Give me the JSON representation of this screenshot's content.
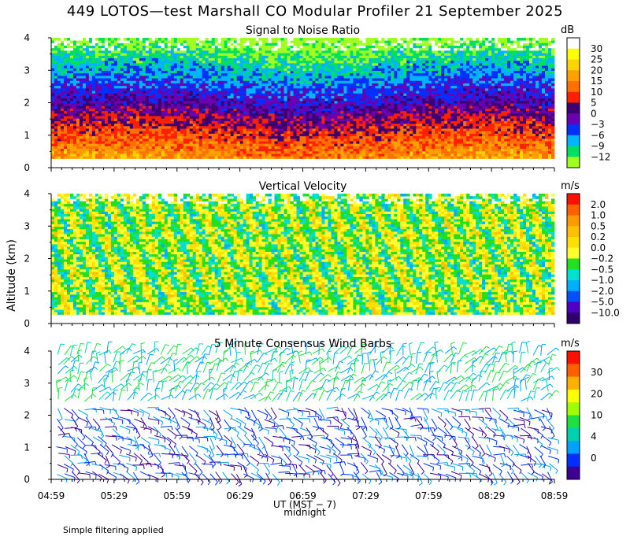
{
  "figure": {
    "title": "449 LOTOS—test Marshall CO Modular Profiler 21 September 2025",
    "ylabel": "Altitude (km)",
    "xlabel": "UT (MST − 7)",
    "midnight_label": "midnight",
    "note": "Simple filtering applied"
  },
  "chart_data": [
    {
      "type": "heatmap",
      "title": "Signal to Noise Ratio",
      "ylim": [
        0,
        4
      ],
      "yticks": [
        "0",
        "1",
        "2",
        "3",
        "4"
      ],
      "colorbar": {
        "unit": "dB",
        "labels": [
          "30",
          "25",
          "20",
          "15",
          "10",
          "5",
          "0",
          "−3",
          "−6",
          "−9",
          "−12"
        ],
        "colors": [
          "#ffffff",
          "#ffff00",
          "#ffd400",
          "#ffa000",
          "#ff7000",
          "#ff2000",
          "#3c0070",
          "#6a00b0",
          "#0030ff",
          "#00b4ff",
          "#00e060",
          "#a0ff20"
        ]
      }
    },
    {
      "type": "heatmap",
      "title": "Vertical Velocity",
      "ylim": [
        0,
        4
      ],
      "yticks": [
        "0",
        "1",
        "2",
        "3",
        "4"
      ],
      "colorbar": {
        "unit": "m/s",
        "labels": [
          "2.0",
          "1.0",
          "0.5",
          "0.2",
          "0.0",
          "−0.2",
          "−0.5",
          "−1.0",
          "−2.0",
          "−5.0",
          "−10.0"
        ],
        "colors": [
          "#ff1000",
          "#ff6000",
          "#ff9a00",
          "#ffc000",
          "#ffe000",
          "#ffff30",
          "#20e020",
          "#00e0d0",
          "#00b0ff",
          "#0050ff",
          "#5000c0",
          "#30006a"
        ]
      }
    },
    {
      "type": "scatter",
      "title": "5 Minute Consensus Wind Barbs",
      "ylim": [
        0,
        4
      ],
      "yticks": [
        "0",
        "1",
        "2",
        "3",
        "4"
      ],
      "colorbar": {
        "unit": "m/s",
        "labels": [
          "30",
          "20",
          "10",
          "4",
          "0"
        ],
        "colors": [
          "#ff1000",
          "#ff6000",
          "#ffb000",
          "#ffff00",
          "#a0ff00",
          "#20e040",
          "#00d0b0",
          "#00a0ff",
          "#0030ff",
          "#400090"
        ]
      }
    }
  ],
  "xaxis": {
    "ticks": [
      "04:59",
      "05:29",
      "05:59",
      "06:29",
      "06:59",
      "07:29",
      "07:59",
      "08:29",
      "08:59"
    ]
  }
}
